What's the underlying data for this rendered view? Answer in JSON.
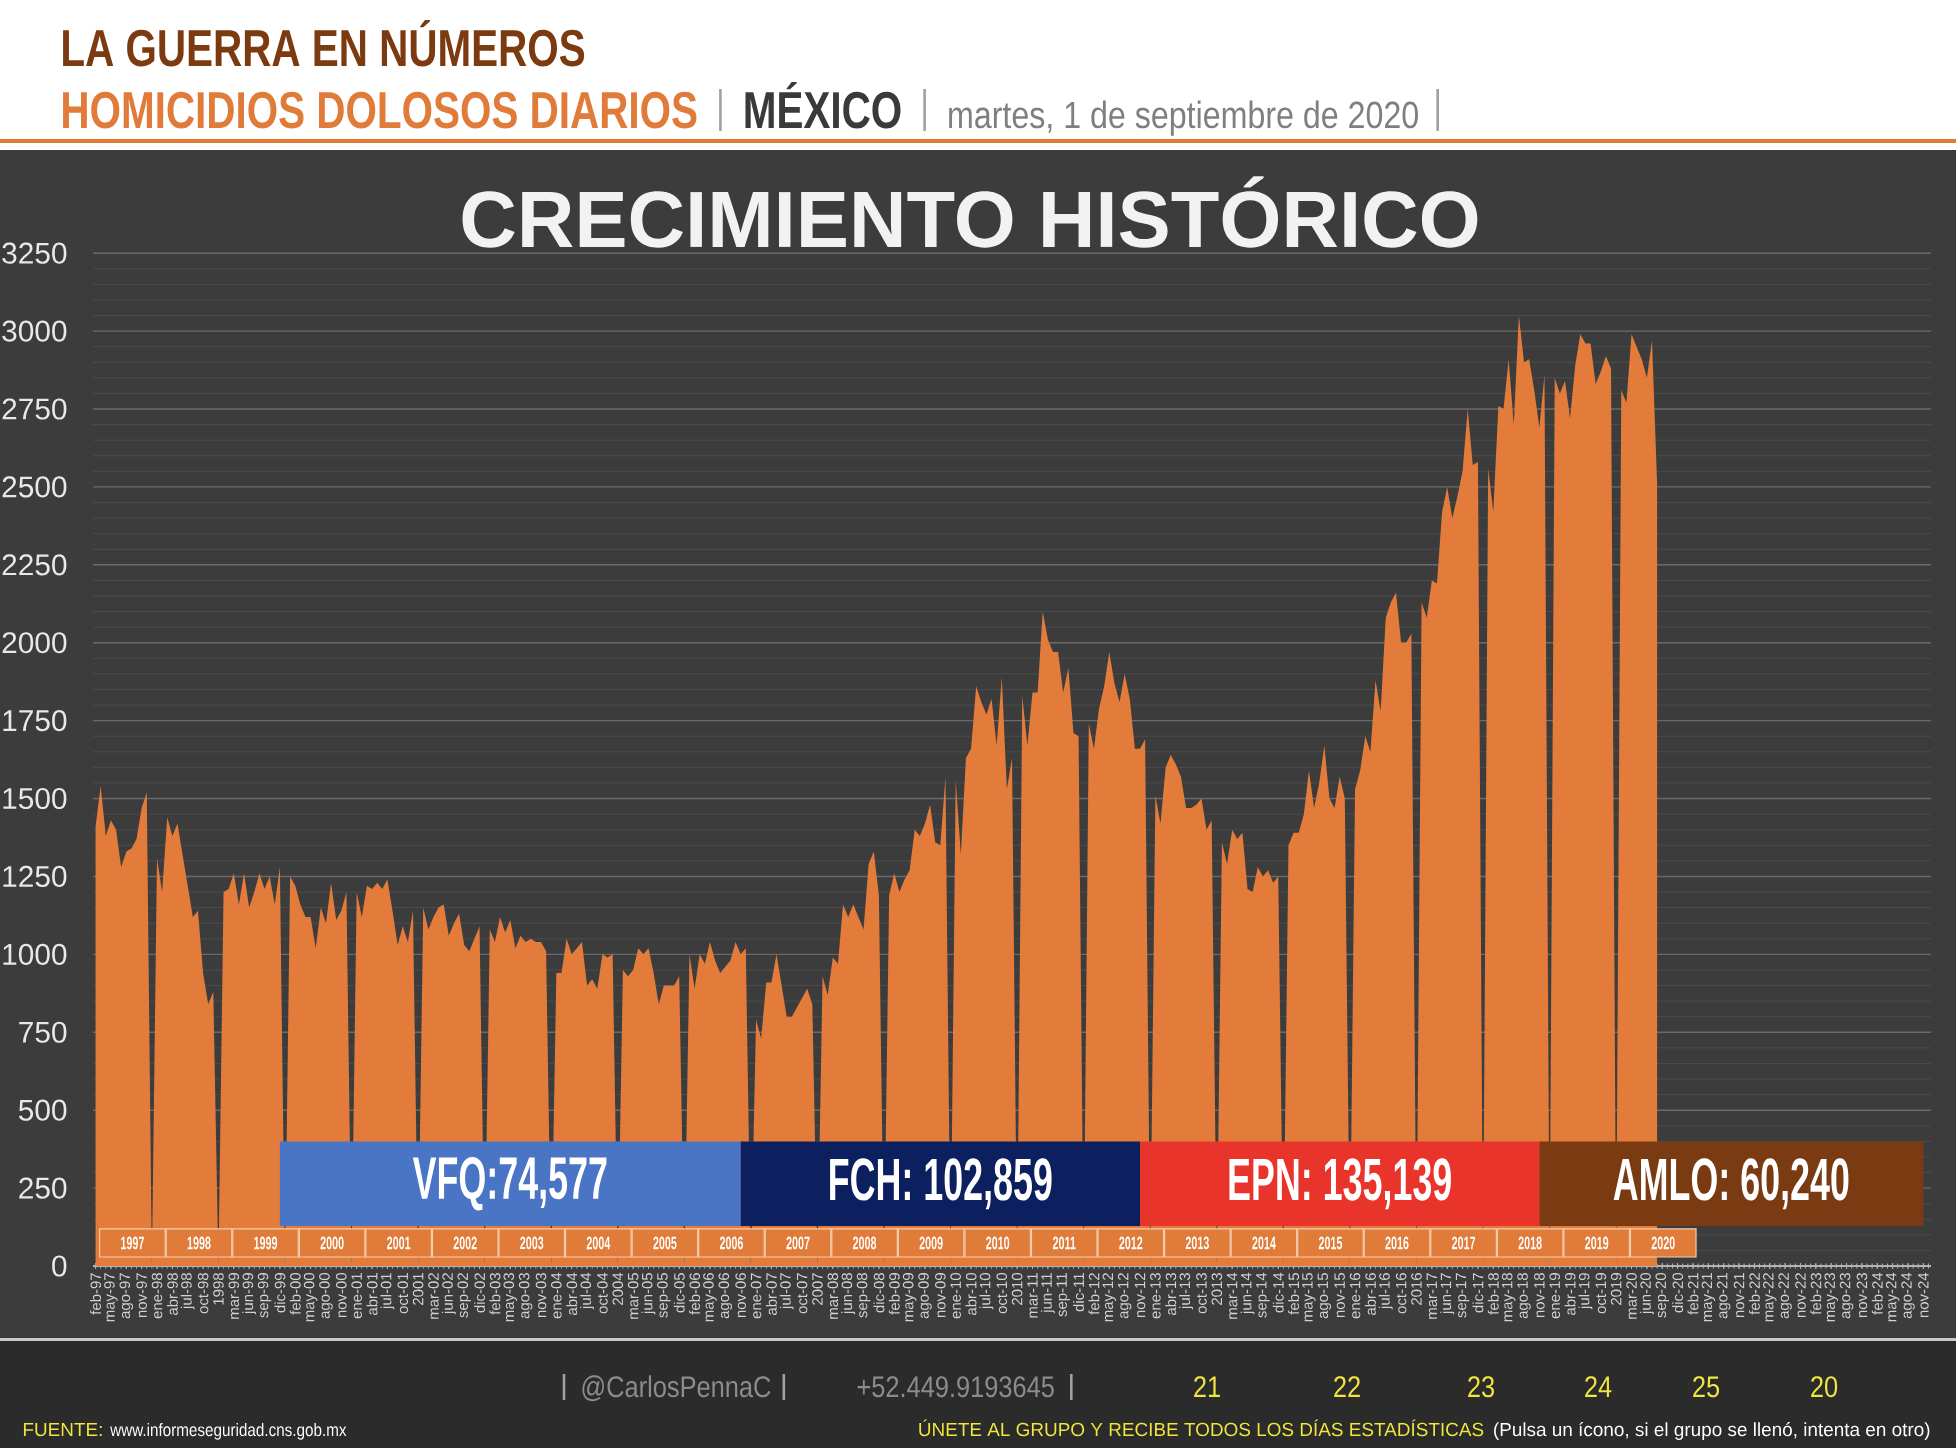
{
  "chart_data": {
    "type": "area",
    "title": "CRECIMIENTO HISTÓRICO",
    "color": "#e37c3b",
    "grid": "y",
    "ylim": [
      0,
      3250
    ],
    "yticks": [
      0,
      250,
      500,
      750,
      1000,
      1250,
      1500,
      1750,
      2000,
      2250,
      2500,
      2750,
      3000,
      3250
    ],
    "categories": [
      "feb-97",
      null,
      null,
      "may-97",
      null,
      null,
      "ago-97",
      null,
      null,
      "nov-97",
      null,
      null,
      "ene-98",
      null,
      null,
      "abr-98",
      null,
      null,
      "jul-98",
      null,
      null,
      "oct-98",
      null,
      null,
      "1998",
      null,
      null,
      "mar-99",
      null,
      null,
      "jun-99",
      null,
      null,
      "sep-99",
      null,
      null,
      "dic-99",
      null,
      null,
      "feb-00",
      null,
      null,
      "may-00",
      null,
      null,
      "ago-00",
      null,
      null,
      "nov-00",
      null,
      null,
      "ene-01",
      null,
      null,
      "abr-01",
      null,
      null,
      "jul-01",
      null,
      null,
      "oct-01",
      null,
      null,
      "2001",
      null,
      null,
      "mar-02",
      null,
      null,
      "jun-02",
      null,
      null,
      "sep-02",
      null,
      null,
      "dic-02",
      null,
      null,
      "feb-03",
      null,
      null,
      "may-03",
      null,
      null,
      "ago-03",
      null,
      null,
      "nov-03",
      null,
      null,
      "ene-04",
      null,
      null,
      "abr-04",
      null,
      null,
      "jul-04",
      null,
      null,
      "oct-04",
      null,
      null,
      "2004",
      null,
      null,
      "mar-05",
      null,
      null,
      "jun-05",
      null,
      null,
      "sep-05",
      null,
      null,
      "dic-05",
      null,
      null,
      "feb-06",
      null,
      null,
      "may-06",
      null,
      null,
      "ago-06",
      null,
      null,
      "nov-06",
      null,
      null,
      "ene-07",
      null,
      null,
      "abr-07",
      null,
      null,
      "jul-07",
      null,
      null,
      "oct-07",
      null,
      null,
      "2007",
      null,
      null,
      "mar-08",
      null,
      null,
      "jun-08",
      null,
      null,
      "sep-08",
      null,
      null,
      "dic-08",
      null,
      null,
      "feb-09",
      null,
      null,
      "may-09",
      null,
      null,
      "ago-09",
      null,
      null,
      "nov-09",
      null,
      null,
      "ene-10",
      null,
      null,
      "abr-10",
      null,
      null,
      "jul-10",
      null,
      null,
      "oct-10",
      null,
      null,
      "2010",
      null,
      null,
      "mar-11",
      null,
      null,
      "jun-11",
      null,
      null,
      "sep-11",
      null,
      null,
      "dic-11",
      null,
      null,
      "feb-12",
      null,
      null,
      "may-12",
      null,
      null,
      "ago-12",
      null,
      null,
      "nov-12",
      null,
      null,
      "ene-13",
      null,
      null,
      "abr-13",
      null,
      null,
      "jul-13",
      null,
      null,
      "oct-13",
      null,
      null,
      "2013",
      null,
      null,
      "mar-14",
      null,
      null,
      "jun-14",
      null,
      null,
      "sep-14",
      null,
      null,
      "dic-14",
      null,
      null,
      "feb-15",
      null,
      null,
      "may-15",
      null,
      null,
      "ago-15",
      null,
      null,
      "nov-15",
      null,
      null,
      "ene-16",
      null,
      null,
      "abr-16",
      null,
      null,
      "jul-16",
      null,
      null,
      "oct-16",
      null,
      null,
      "2016",
      null,
      null,
      "mar-17",
      null,
      null,
      "jun-17",
      null,
      null,
      "sep-17",
      null,
      null,
      "dic-17",
      null,
      null,
      "feb-18",
      null,
      null,
      "may-18",
      null,
      null,
      "ago-18",
      null,
      null,
      "nov-18",
      null,
      null,
      "ene-19",
      null,
      null,
      "abr-19",
      null,
      null,
      "jul-19",
      null,
      null,
      "oct-19",
      null,
      null,
      "2019",
      null,
      null,
      "mar-20",
      null,
      null,
      "jun-20",
      null,
      null,
      "sep-20",
      null,
      null,
      "dic-20",
      null,
      null,
      "feb-21",
      null,
      null,
      "may-21",
      null,
      null,
      "ago-21",
      null,
      null,
      "nov-21",
      null,
      null,
      "feb-22",
      null,
      null,
      "may-22",
      null,
      null,
      "ago-22",
      null,
      null,
      "nov-22",
      null,
      null,
      "feb-23",
      null,
      null,
      "may-23",
      null,
      null,
      "ago-23",
      null,
      null,
      "nov-23",
      null,
      null,
      "feb-24",
      null,
      null,
      "may-24",
      null,
      null,
      "ago-24",
      null,
      null,
      "nov-24",
      null
    ],
    "values": [
      1410,
      1540,
      1380,
      1430,
      1400,
      1280,
      1330,
      1340,
      1370,
      1470,
      1520,
      0,
      1310,
      1200,
      1440,
      1380,
      1420,
      1320,
      1220,
      1120,
      1140,
      940,
      840,
      880,
      0,
      1200,
      1210,
      1260,
      1160,
      1260,
      1150,
      1200,
      1260,
      1210,
      1250,
      1160,
      1280,
      0,
      1250,
      1220,
      1160,
      1120,
      1120,
      1020,
      1150,
      1100,
      1230,
      1110,
      1140,
      1200,
      0,
      1200,
      1120,
      1220,
      1210,
      1230,
      1210,
      1240,
      1140,
      1030,
      1090,
      1040,
      1140,
      0,
      1150,
      1080,
      1120,
      1150,
      1160,
      1060,
      1100,
      1130,
      1030,
      1010,
      1050,
      1090,
      0,
      1080,
      1040,
      1120,
      1070,
      1110,
      1020,
      1060,
      1040,
      1050,
      1040,
      1040,
      1010,
      0,
      940,
      940,
      1050,
      1000,
      1020,
      1040,
      900,
      920,
      890,
      1000,
      990,
      1000,
      0,
      950,
      930,
      950,
      1020,
      1000,
      1020,
      940,
      840,
      900,
      900,
      900,
      930,
      0,
      1000,
      890,
      1000,
      970,
      1040,
      980,
      940,
      960,
      980,
      1040,
      1000,
      1020,
      0,
      790,
      730,
      910,
      910,
      1000,
      900,
      800,
      800,
      830,
      860,
      890,
      840,
      0,
      930,
      870,
      990,
      970,
      1160,
      1120,
      1160,
      1120,
      1080,
      1290,
      1330,
      1190,
      0,
      1190,
      1260,
      1200,
      1240,
      1270,
      1400,
      1380,
      1420,
      1480,
      1360,
      1350,
      1570,
      0,
      1560,
      1320,
      1630,
      1660,
      1860,
      1810,
      1770,
      1820,
      1670,
      1890,
      1530,
      1630,
      0,
      1830,
      1670,
      1840,
      1840,
      2100,
      2010,
      1970,
      1970,
      1840,
      1920,
      1710,
      1700,
      0,
      1740,
      1660,
      1790,
      1860,
      1970,
      1870,
      1810,
      1900,
      1820,
      1660,
      1660,
      1690,
      0,
      1510,
      1420,
      1600,
      1640,
      1610,
      1570,
      1470,
      1470,
      1480,
      1500,
      1400,
      1430,
      0,
      1360,
      1290,
      1400,
      1370,
      1390,
      1210,
      1200,
      1280,
      1250,
      1270,
      1230,
      1250,
      0,
      1350,
      1390,
      1390,
      1450,
      1590,
      1470,
      1550,
      1670,
      1500,
      1470,
      1570,
      1500,
      0,
      1530,
      1590,
      1700,
      1650,
      1880,
      1780,
      2080,
      2130,
      2160,
      2000,
      2000,
      2030,
      0,
      2130,
      2080,
      2200,
      2190,
      2420,
      2500,
      2400,
      2470,
      2550,
      2750,
      2570,
      2580,
      0,
      2560,
      2420,
      2760,
      2750,
      2910,
      2700,
      3050,
      2900,
      2910,
      2810,
      2690,
      2860,
      0,
      2850,
      2800,
      2840,
      2720,
      2890,
      2990,
      2960,
      2960,
      2830,
      2870,
      2920,
      2880,
      0,
      2810,
      2770,
      2990,
      2950,
      2910,
      2850,
      2970,
      2510,
      null,
      null,
      null,
      null,
      null,
      null,
      null,
      null,
      null,
      null,
      null,
      null,
      null,
      null,
      null,
      null,
      null,
      null,
      null,
      null,
      null,
      null,
      null,
      null,
      null,
      null,
      null,
      null,
      null,
      null,
      null,
      null,
      null,
      null,
      null,
      null,
      null,
      null,
      null,
      null,
      null,
      null,
      null,
      null,
      null,
      null,
      null,
      null,
      null,
      null,
      null,
      null,
      null
    ],
    "bands": [
      {
        "axis": "x",
        "from": "dic-99",
        "to": "nov-06",
        "label": "VFQ:74,577",
        "color": "#4a74c4"
      },
      {
        "axis": "x",
        "from": "nov-06",
        "to": "nov-12",
        "label": "FCH: 102,859",
        "color": "#0c2060"
      },
      {
        "axis": "x",
        "from": "nov-12",
        "to": "nov-18",
        "label": "EPN: 135,139",
        "color": "#e8342a"
      },
      {
        "axis": "x",
        "from": "nov-18",
        "to": "nov-24",
        "label": "AMLO: 60,240",
        "color": "#7a3a12"
      }
    ],
    "annotations": [
      "LA GUERRA EN NÚMEROS",
      "HOMICIDIOS DOLOSOS DIARIOS",
      "MÉXICO",
      "martes, 1 de septiembre de 2020",
      "@CarlosPennaC",
      "+52.449.9193645",
      "21",
      "22",
      "23",
      "24",
      "25",
      "20",
      "FUENTE:",
      "www.informeseguridad.cns.gob.mx",
      "ÚNETE AL GRUPO Y RECIBE TODOS LOS DÍAS ESTADÍSTICAS",
      "(Pulsa un ícono, si el grupo se llenó, intenta en otro)",
      "1997",
      "1998",
      "1999",
      "2000",
      "2001",
      "2002",
      "2003",
      "2004",
      "2005",
      "2006",
      "2007",
      "2008",
      "2009",
      "2010",
      "2011",
      "2012",
      "2013",
      "2014",
      "2015",
      "2016",
      "2017",
      "2018",
      "2019",
      "2020"
    ]
  }
}
